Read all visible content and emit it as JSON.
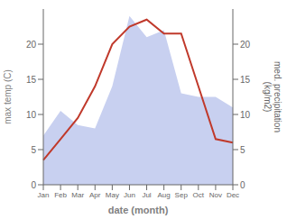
{
  "chart_data": {
    "type": "line",
    "xlabel": "date (month)",
    "ylabel": "max temp (C)",
    "y2label": "med. precipitation\n(kg/m2)",
    "categories": [
      "Jan",
      "Feb",
      "Mar",
      "Apr",
      "May",
      "Jun",
      "Jul",
      "Aug",
      "Sep",
      "Oct",
      "Nov",
      "Dec"
    ],
    "series": [
      {
        "type": "area",
        "axis": "y2",
        "color": "#c8d0f0",
        "values": [
          7.0,
          10.5,
          8.5,
          8.0,
          14.0,
          24.0,
          21.0,
          22.0,
          13.0,
          12.5,
          12.5,
          11.0
        ]
      },
      {
        "type": "line",
        "color": "#c0392b",
        "values": [
          3.5,
          6.5,
          9.5,
          14.0,
          20.0,
          22.5,
          23.5,
          21.5,
          21.5,
          14.0,
          6.5,
          6.0
        ]
      }
    ],
    "ylim": [
      0,
      25
    ],
    "yticks": [
      0,
      5,
      10,
      15,
      20
    ],
    "y2lim": [
      0,
      25
    ],
    "y2ticks": [
      0,
      5,
      10,
      15,
      20
    ],
    "grid": false
  }
}
